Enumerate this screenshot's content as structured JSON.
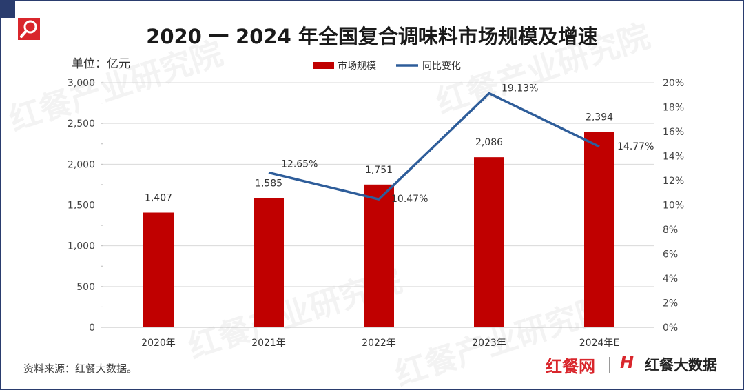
{
  "title": "2020 一 2024 年全国复合调味料市场规模及增速",
  "unit_label": "单位：亿元",
  "source": "资料来源：红餐大数据。",
  "brand_primary": "红餐网",
  "brand_mark": "H",
  "brand_secondary": "红餐大数据",
  "watermark": "红餐产业研究院",
  "colors": {
    "bar": "#c00000",
    "line": "#2e5d9a",
    "frame": "#2a3c6e",
    "logo": "#d9262c",
    "grid": "#d9d9d9"
  },
  "chart_data": {
    "type": "bar",
    "categories": [
      "2020年",
      "2021年",
      "2022年",
      "2023年",
      "2024年E"
    ],
    "series": [
      {
        "name": "市场规模",
        "type": "bar",
        "axis": "left",
        "values": [
          1407,
          1585,
          1751,
          2086,
          2394
        ],
        "labels": [
          "1,407",
          "1,585",
          "1,751",
          "2,086",
          "2,394"
        ]
      },
      {
        "name": "同比变化",
        "type": "line",
        "axis": "right",
        "values": [
          null,
          12.65,
          10.47,
          19.13,
          14.77
        ],
        "labels": [
          "",
          "12.65%",
          "10.47%",
          "19.13%",
          "14.77%"
        ]
      }
    ],
    "y_left": {
      "min": 0,
      "max": 3000,
      "ticks": [
        0,
        500,
        1000,
        1500,
        2000,
        2500,
        3000
      ],
      "tick_labels": [
        "0",
        "500",
        "1,000",
        "1,500",
        "2,000",
        "2,500",
        "3,000"
      ]
    },
    "y_right": {
      "min": 0,
      "max": 20,
      "ticks": [
        0,
        2,
        4,
        6,
        8,
        10,
        12,
        14,
        16,
        18,
        20
      ],
      "tick_labels": [
        "0%",
        "2%",
        "4%",
        "6%",
        "8%",
        "10%",
        "12%",
        "14%",
        "16%",
        "18%",
        "20%"
      ]
    },
    "grid": true,
    "legend_position": "top-center"
  }
}
